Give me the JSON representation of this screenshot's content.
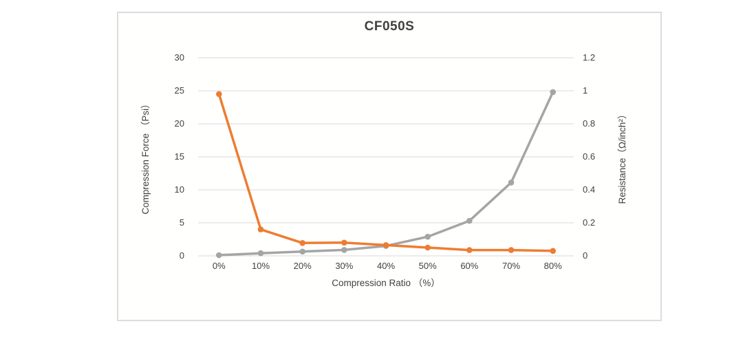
{
  "chart": {
    "title": "CF050S",
    "left_axis": {
      "title": "Compression Force （Psi）",
      "ticks": [
        "30",
        "25",
        "20",
        "15",
        "10",
        "5",
        "0"
      ],
      "min": 0,
      "max": 30
    },
    "right_axis": {
      "title": "Resistance（Ω/inch²）",
      "ticks": [
        "1.2",
        "1",
        "0.8",
        "0.6",
        "0.4",
        "0.2",
        "0"
      ],
      "min": 0,
      "max": 1.2
    },
    "x_axis": {
      "title": "Compression Ratio （%）",
      "ticks": [
        "0%",
        "10%",
        "20%",
        "30%",
        "40%",
        "50%",
        "60%",
        "70%",
        "80%"
      ]
    },
    "colors": {
      "force_series": "#a5a5a5",
      "resistance_series": "#ed7d31",
      "gridline": "#d9d9d9",
      "text": "#404040",
      "frame_border": "#dcdcda"
    }
  },
  "chart_data": {
    "type": "line",
    "title": "CF050S",
    "xlabel": "Compression Ratio （%）",
    "categories": [
      "0%",
      "10%",
      "20%",
      "30%",
      "40%",
      "50%",
      "60%",
      "70%",
      "80%"
    ],
    "series": [
      {
        "name": "Compression Force (Psi)",
        "axis": "left",
        "color": "#a5a5a5",
        "values": [
          0.1,
          0.4,
          0.65,
          0.9,
          1.5,
          2.9,
          5.3,
          11.1,
          24.8
        ]
      },
      {
        "name": "Resistance (Ω/inch²)",
        "axis": "right",
        "color": "#ed7d31",
        "values": [
          0.98,
          0.16,
          0.078,
          0.08,
          0.065,
          0.05,
          0.035,
          0.035,
          0.03
        ]
      }
    ],
    "left_ylabel": "Compression Force （Psi）",
    "left_ylim": [
      0,
      30
    ],
    "right_ylabel": "Resistance（Ω/inch²）",
    "right_ylim": [
      0,
      1.2
    ],
    "grid": true,
    "legend": "none"
  }
}
